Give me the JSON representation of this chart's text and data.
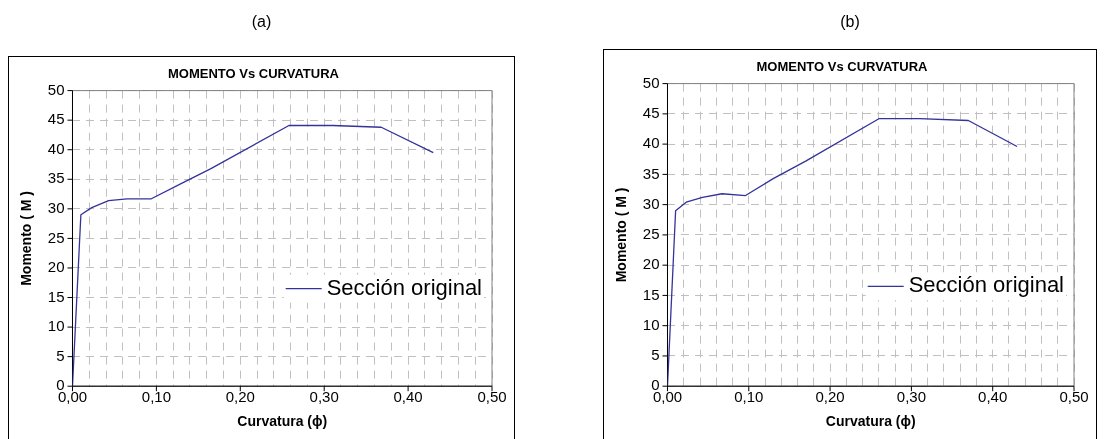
{
  "chart_data": [
    {
      "type": "line",
      "title": "MOMENTO Vs CURVATURA",
      "annotations": [
        "(a)"
      ],
      "xlabel": "Curvatura (ϕ)",
      "ylabel": "Momento ( M )",
      "x": [
        0,
        0.01,
        0.023,
        0.043,
        0.065,
        0.094,
        0.13,
        0.165,
        0.258,
        0.31,
        0.368,
        0.43
      ],
      "series": [
        {
          "name": "Sección original",
          "color": "#333399",
          "values": [
            0,
            29,
            30.2,
            31.4,
            31.7,
            31.7,
            34.3,
            36.8,
            44.1,
            44.1,
            43.8,
            39.5
          ]
        }
      ],
      "xlim": [
        0,
        0.5
      ],
      "xticks": [
        {
          "value": 0,
          "label": "0,00"
        },
        {
          "value": 0.02,
          "label": null
        },
        {
          "value": 0.04,
          "label": null
        },
        {
          "value": 0.06,
          "label": null
        },
        {
          "value": 0.08,
          "label": null
        },
        {
          "value": 0.1,
          "label": "0,10"
        },
        {
          "value": 0.12,
          "label": null
        },
        {
          "value": 0.14,
          "label": null
        },
        {
          "value": 0.16,
          "label": null
        },
        {
          "value": 0.18,
          "label": null
        },
        {
          "value": 0.2,
          "label": "0,20"
        },
        {
          "value": 0.22,
          "label": null
        },
        {
          "value": 0.24,
          "label": null
        },
        {
          "value": 0.26,
          "label": null
        },
        {
          "value": 0.28,
          "label": null
        },
        {
          "value": 0.3,
          "label": "0,30"
        },
        {
          "value": 0.32,
          "label": null
        },
        {
          "value": 0.34,
          "label": null
        },
        {
          "value": 0.36,
          "label": null
        },
        {
          "value": 0.38,
          "label": null
        },
        {
          "value": 0.4,
          "label": "0,40"
        },
        {
          "value": 0.42,
          "label": null
        },
        {
          "value": 0.44,
          "label": null
        },
        {
          "value": 0.46,
          "label": null
        },
        {
          "value": 0.48,
          "label": null
        },
        {
          "value": 0.5,
          "label": "0,50"
        }
      ],
      "ylim": [
        0,
        50
      ],
      "yticks": [
        0,
        5,
        10,
        15,
        20,
        25,
        30,
        35,
        40,
        45,
        50
      ],
      "grid": true,
      "legend": "bottom right",
      "marker": "none",
      "line_style": "solid"
    },
    {
      "type": "line",
      "title": "MOMENTO Vs CURVATURA",
      "annotations": [
        "(b)"
      ],
      "xlabel": "Curvatura (ϕ)",
      "ylabel": "Momento ( M )",
      "x": [
        0,
        0.01,
        0.023,
        0.043,
        0.067,
        0.096,
        0.13,
        0.17,
        0.26,
        0.31,
        0.37,
        0.43
      ],
      "series": [
        {
          "name": "Sección original",
          "color": "#333399",
          "values": [
            0,
            29,
            30.4,
            31.2,
            31.8,
            31.5,
            34.3,
            37.2,
            44.2,
            44.2,
            43.9,
            39.6
          ]
        }
      ],
      "xlim": [
        0,
        0.5
      ],
      "xticks": [
        {
          "value": 0,
          "label": "0,00"
        },
        {
          "value": 0.02,
          "label": null
        },
        {
          "value": 0.04,
          "label": null
        },
        {
          "value": 0.06,
          "label": null
        },
        {
          "value": 0.08,
          "label": null
        },
        {
          "value": 0.1,
          "label": "0,10"
        },
        {
          "value": 0.12,
          "label": null
        },
        {
          "value": 0.14,
          "label": null
        },
        {
          "value": 0.16,
          "label": null
        },
        {
          "value": 0.18,
          "label": null
        },
        {
          "value": 0.2,
          "label": "0,20"
        },
        {
          "value": 0.22,
          "label": null
        },
        {
          "value": 0.24,
          "label": null
        },
        {
          "value": 0.26,
          "label": null
        },
        {
          "value": 0.28,
          "label": null
        },
        {
          "value": 0.3,
          "label": "0,30"
        },
        {
          "value": 0.32,
          "label": null
        },
        {
          "value": 0.34,
          "label": null
        },
        {
          "value": 0.36,
          "label": null
        },
        {
          "value": 0.38,
          "label": null
        },
        {
          "value": 0.4,
          "label": "0,40"
        },
        {
          "value": 0.42,
          "label": null
        },
        {
          "value": 0.44,
          "label": null
        },
        {
          "value": 0.46,
          "label": null
        },
        {
          "value": 0.48,
          "label": null
        },
        {
          "value": 0.5,
          "label": "0,50"
        }
      ],
      "ylim": [
        0,
        50
      ],
      "yticks": [
        0,
        5,
        10,
        15,
        20,
        25,
        30,
        35,
        40,
        45,
        50
      ],
      "grid": true,
      "legend": "bottom right",
      "marker": "none",
      "line_style": "solid"
    }
  ]
}
